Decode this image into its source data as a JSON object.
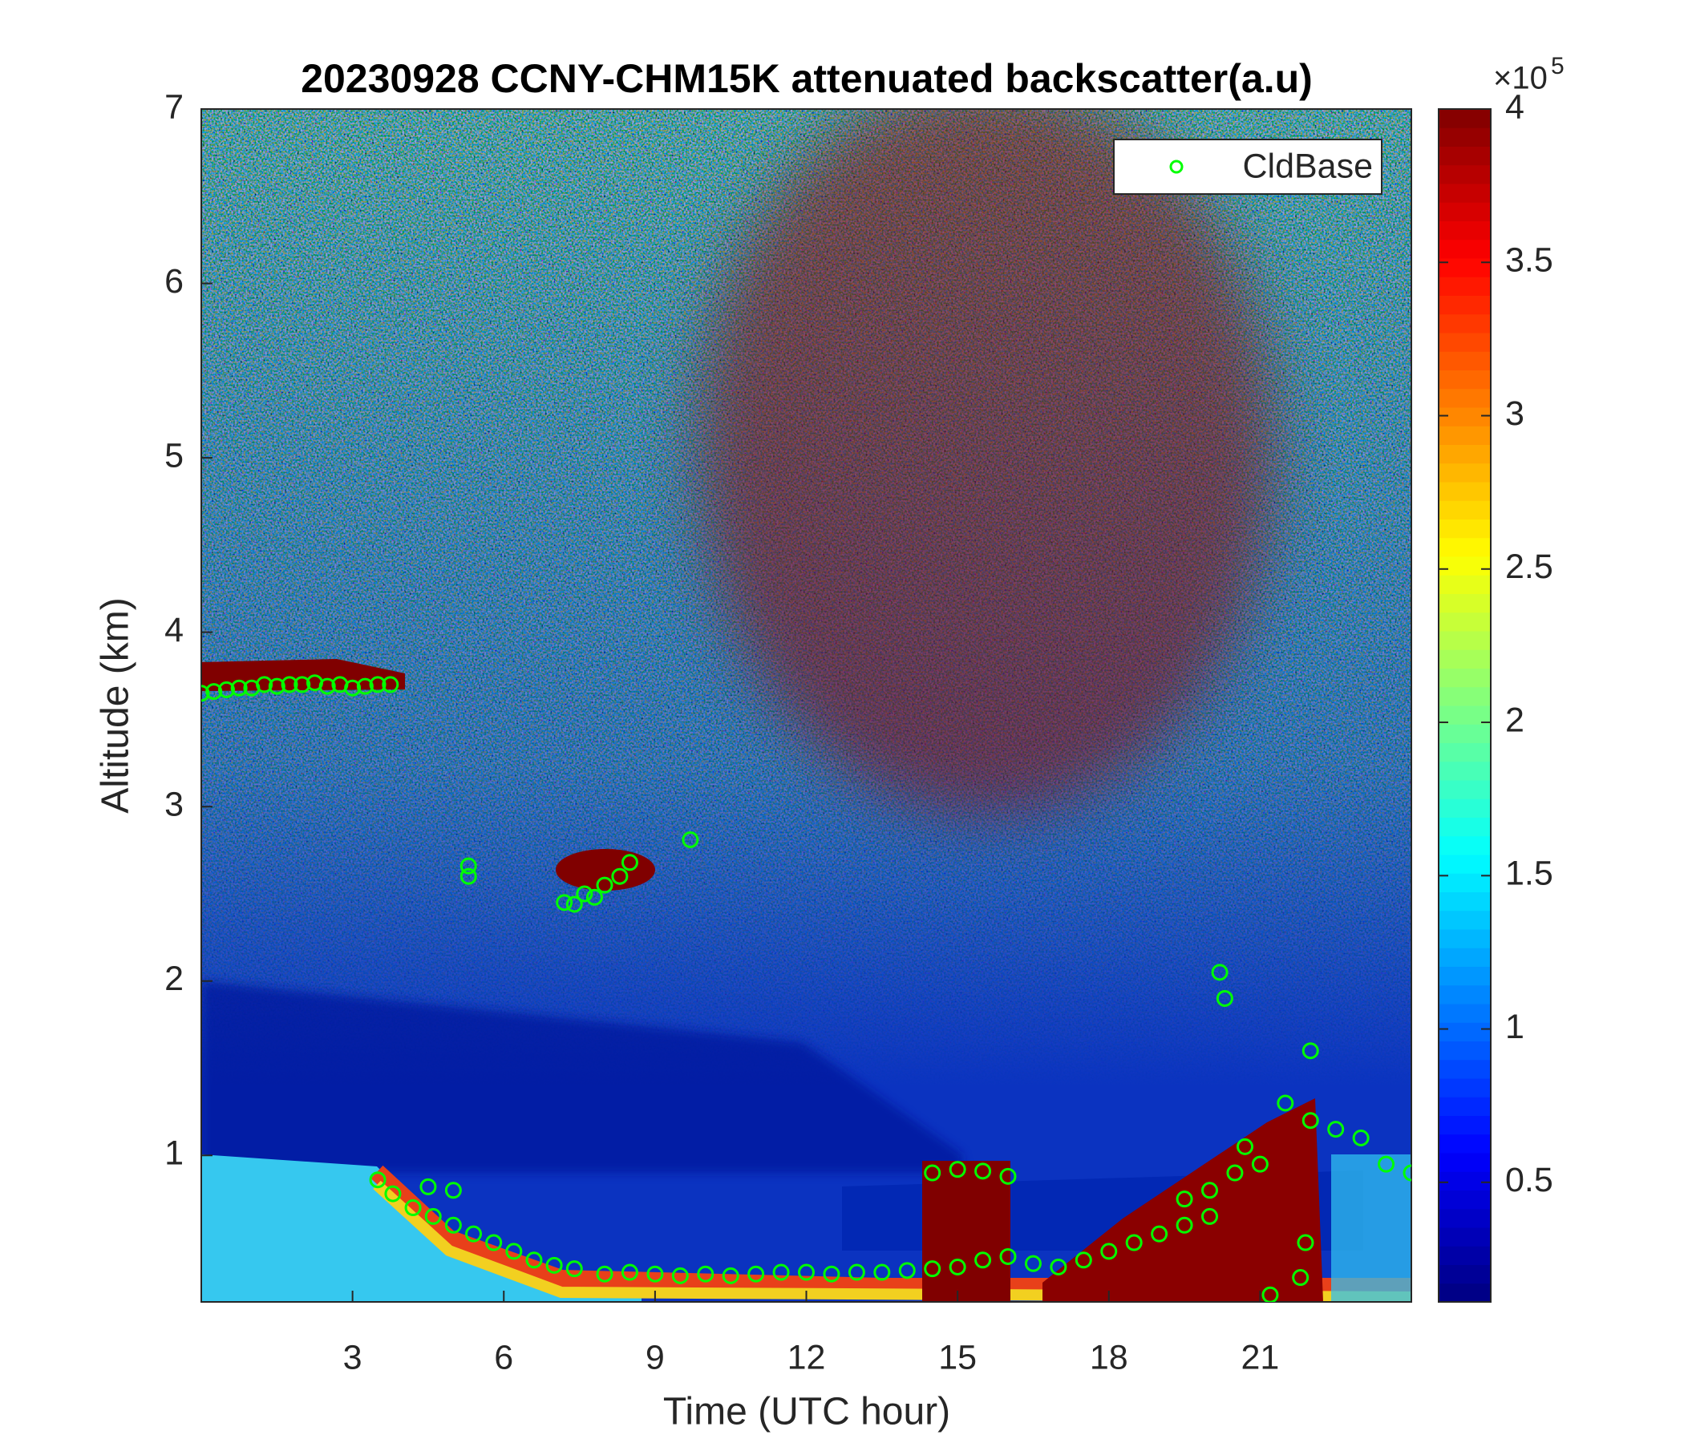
{
  "chart_data": {
    "type": "heatmap-scatter",
    "title": "20230928 CCNY-CHM15K attenuated backscatter(a.u)",
    "x_label": "Time (UTC hour)",
    "y_label": "Altitude (km)",
    "xlim": [
      0,
      24
    ],
    "xticks": [
      3,
      6,
      9,
      12,
      15,
      18,
      21
    ],
    "ylim": [
      0.16,
      7
    ],
    "yticks": [
      1,
      2,
      3,
      4,
      5,
      6,
      7
    ],
    "colormap": "jet",
    "clim": [
      0.11,
      4
    ],
    "cticks": [
      0.5,
      1,
      1.5,
      2,
      2.5,
      3,
      3.5,
      4
    ],
    "colorbar_scale_label": "×10",
    "colorbar_scale_exponent": "5",
    "legend": "upper right",
    "series": [
      {
        "name": "CldBase",
        "color": "#00ff00",
        "x": [
          0,
          0.25,
          0.5,
          0.75,
          1,
          1.25,
          1.5,
          1.75,
          2,
          2.25,
          2.5,
          2.75,
          3,
          3.25,
          3.5,
          3.75,
          5.3,
          5.3,
          7.2,
          7.4,
          7.6,
          7.8,
          8,
          8.3,
          8.5,
          9.7,
          3.5,
          3.8,
          4.2,
          4.5,
          4.6,
          5,
          5,
          5.4,
          5.8,
          6.2,
          6.6,
          7,
          7.4,
          8,
          8.5,
          9,
          9.5,
          10,
          10.5,
          11,
          11.5,
          12,
          12.5,
          13,
          13.5,
          14,
          14.5,
          15,
          15.5,
          16,
          16.5,
          17,
          17.5,
          18,
          18.5,
          19,
          19.5,
          20,
          14.5,
          15,
          15.5,
          16,
          20.2,
          20.3,
          19.5,
          20,
          20.5,
          20.7,
          21,
          21.2,
          21.5,
          21.8,
          21.9,
          22,
          22,
          22.5,
          23,
          23.5,
          24
        ],
        "values": [
          3.65,
          3.66,
          3.67,
          3.68,
          3.68,
          3.7,
          3.69,
          3.7,
          3.7,
          3.71,
          3.69,
          3.7,
          3.68,
          3.69,
          3.7,
          3.7,
          2.66,
          2.6,
          2.45,
          2.44,
          2.5,
          2.48,
          2.55,
          2.6,
          2.68,
          2.81,
          0.86,
          0.78,
          0.7,
          0.82,
          0.65,
          0.6,
          0.8,
          0.55,
          0.5,
          0.45,
          0.4,
          0.37,
          0.35,
          0.32,
          0.33,
          0.32,
          0.31,
          0.32,
          0.31,
          0.32,
          0.33,
          0.33,
          0.32,
          0.33,
          0.33,
          0.34,
          0.35,
          0.36,
          0.4,
          0.42,
          0.38,
          0.36,
          0.4,
          0.45,
          0.5,
          0.55,
          0.6,
          0.65,
          0.9,
          0.92,
          0.91,
          0.88,
          2.05,
          1.9,
          0.75,
          0.8,
          0.9,
          1.05,
          0.95,
          0.2,
          1.3,
          0.3,
          0.5,
          1.2,
          1.6,
          1.15,
          1.1,
          0.95,
          0.9
        ]
      }
    ]
  }
}
